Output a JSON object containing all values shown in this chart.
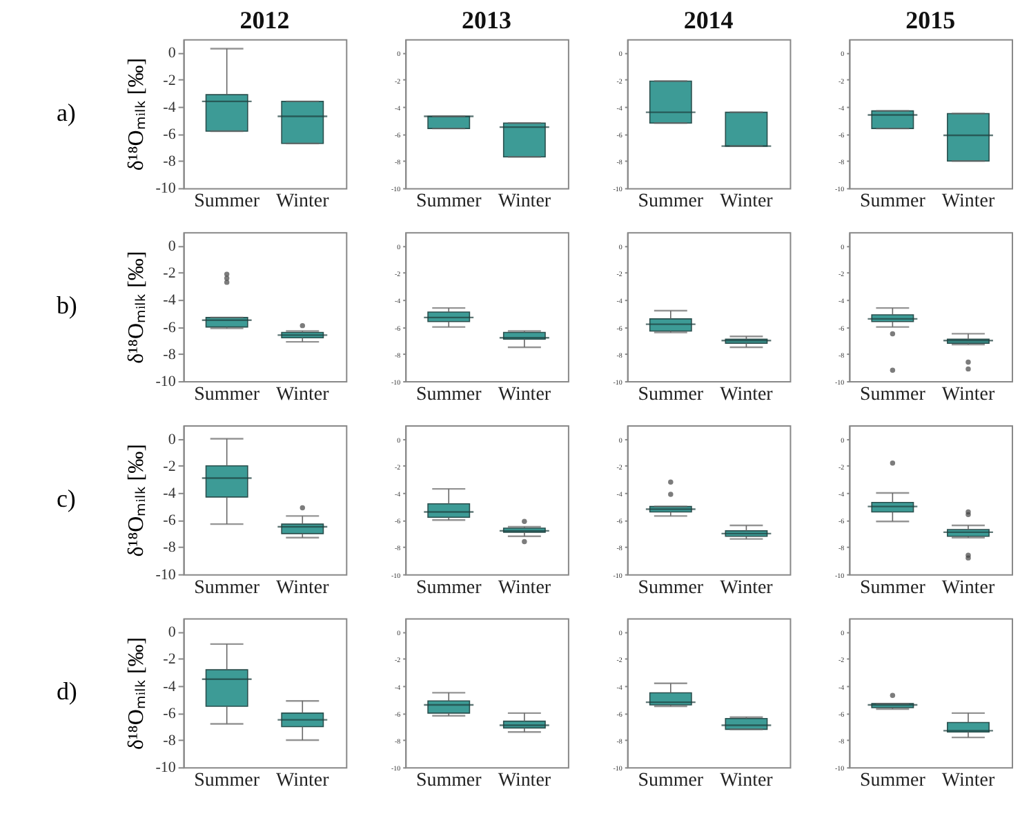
{
  "chart_data": [
    {
      "type": "box",
      "title": "2012",
      "ylabel": "δ¹⁸Oₘᵢₗₖ [‰]",
      "annotations": [
        "a)"
      ],
      "categories": [
        "Summer",
        "Winter"
      ],
      "ylim": [
        -10,
        1
      ],
      "yticks": [
        0,
        -2,
        -4,
        -6,
        -8,
        -10
      ],
      "series": [
        {
          "color": "#3d9b96",
          "boxes": [
            {
              "low": -5.8,
              "q1": -5.8,
              "median": -3.6,
              "q3": -3.1,
              "high": 0.3
            },
            {
              "low": -6.7,
              "q1": -6.7,
              "median": -4.7,
              "q3": -3.6,
              "high": -3.6
            }
          ]
        }
      ]
    },
    {
      "type": "box",
      "title": "2013",
      "categories": [
        "Summer",
        "Winter"
      ],
      "ylim": [
        -10,
        1
      ],
      "yticks": [
        0,
        -2,
        -4,
        -6,
        -8,
        -10
      ],
      "series": [
        {
          "color": "#3d9b96",
          "boxes": [
            {
              "low": -5.6,
              "q1": -5.6,
              "median": -4.7,
              "q3": -4.7,
              "high": -4.7
            },
            {
              "low": -7.7,
              "q1": -7.7,
              "median": -5.5,
              "q3": -5.2,
              "high": -5.2
            }
          ]
        }
      ]
    },
    {
      "type": "box",
      "title": "2014",
      "categories": [
        "Summer",
        "Winter"
      ],
      "ylim": [
        -10,
        1
      ],
      "yticks": [
        0,
        -2,
        -4,
        -6,
        -8,
        -10
      ],
      "series": [
        {
          "color": "#3d9b96",
          "boxes": [
            {
              "low": -5.2,
              "q1": -5.2,
              "median": -4.4,
              "q3": -2.1,
              "high": -2.1
            },
            {
              "low": -6.9,
              "q1": -6.9,
              "median": -6.9,
              "q3": -4.4,
              "high": -4.4
            }
          ]
        }
      ]
    },
    {
      "type": "box",
      "title": "2015",
      "categories": [
        "Summer",
        "Winter"
      ],
      "ylim": [
        -10,
        1
      ],
      "yticks": [
        0,
        -2,
        -4,
        -6,
        -8,
        -10
      ],
      "series": [
        {
          "color": "#3d9b96",
          "boxes": [
            {
              "low": -5.6,
              "q1": -5.6,
              "median": -4.6,
              "q3": -4.3,
              "high": -4.3
            },
            {
              "low": -8.0,
              "q1": -8.0,
              "median": -6.1,
              "q3": -4.5,
              "high": -4.5
            }
          ]
        }
      ]
    },
    {
      "type": "box",
      "ylabel": "δ¹⁸Oₘᵢₗₖ [‰]",
      "annotations": [
        "b)"
      ],
      "categories": [
        "Summer",
        "Winter"
      ],
      "ylim": [
        -10,
        1
      ],
      "yticks": [
        0,
        -2,
        -4,
        -6,
        -8,
        -10
      ],
      "series": [
        {
          "color": "#3d9b96",
          "boxes": [
            {
              "low": -6.1,
              "q1": -6.0,
              "median": -5.5,
              "q3": -5.3,
              "high": -5.3,
              "outliers": [
                -2.1,
                -2.4,
                -2.7
              ]
            },
            {
              "low": -7.1,
              "q1": -6.8,
              "median": -6.6,
              "q3": -6.4,
              "high": -6.3,
              "outliers": [
                -5.9
              ]
            }
          ]
        }
      ]
    },
    {
      "type": "box",
      "categories": [
        "Summer",
        "Winter"
      ],
      "ylim": [
        -10,
        1
      ],
      "yticks": [
        0,
        -2,
        -4,
        -6,
        -8,
        -10
      ],
      "series": [
        {
          "color": "#3d9b96",
          "boxes": [
            {
              "low": -6.0,
              "q1": -5.6,
              "median": -5.3,
              "q3": -4.9,
              "high": -4.6
            },
            {
              "low": -7.5,
              "q1": -6.9,
              "median": -6.8,
              "q3": -6.4,
              "high": -6.3
            }
          ]
        }
      ]
    },
    {
      "type": "box",
      "categories": [
        "Summer",
        "Winter"
      ],
      "ylim": [
        -10,
        1
      ],
      "yticks": [
        0,
        -2,
        -4,
        -6,
        -8,
        -10
      ],
      "series": [
        {
          "color": "#3d9b96",
          "boxes": [
            {
              "low": -6.4,
              "q1": -6.3,
              "median": -5.8,
              "q3": -5.4,
              "high": -4.8
            },
            {
              "low": -7.5,
              "q1": -7.2,
              "median": -7.0,
              "q3": -6.9,
              "high": -6.7
            }
          ]
        }
      ]
    },
    {
      "type": "box",
      "categories": [
        "Summer",
        "Winter"
      ],
      "ylim": [
        -10,
        1
      ],
      "yticks": [
        0,
        -2,
        -4,
        -6,
        -8,
        -10
      ],
      "series": [
        {
          "color": "#3d9b96",
          "boxes": [
            {
              "low": -6.0,
              "q1": -5.6,
              "median": -5.4,
              "q3": -5.1,
              "high": -4.6,
              "outliers": [
                -6.5,
                -9.2
              ]
            },
            {
              "low": -7.3,
              "q1": -7.2,
              "median": -7.0,
              "q3": -6.9,
              "high": -6.5,
              "outliers": [
                -8.6,
                -9.1
              ]
            }
          ]
        }
      ]
    },
    {
      "type": "box",
      "ylabel": "δ¹⁸Oₘᵢₗₖ [‰]",
      "annotations": [
        "c)"
      ],
      "categories": [
        "Summer",
        "Winter"
      ],
      "ylim": [
        -10,
        1
      ],
      "yticks": [
        0,
        -2,
        -4,
        -6,
        -8,
        -10
      ],
      "series": [
        {
          "color": "#3d9b96",
          "boxes": [
            {
              "low": -6.3,
              "q1": -4.3,
              "median": -2.9,
              "q3": -2.0,
              "high": 0
            },
            {
              "low": -7.3,
              "q1": -7.0,
              "median": -6.5,
              "q3": -6.3,
              "high": -5.7,
              "outliers": [
                -5.1
              ]
            }
          ]
        }
      ]
    },
    {
      "type": "box",
      "categories": [
        "Summer",
        "Winter"
      ],
      "ylim": [
        -10,
        1
      ],
      "yticks": [
        0,
        -2,
        -4,
        -6,
        -8,
        -10
      ],
      "series": [
        {
          "color": "#3d9b96",
          "boxes": [
            {
              "low": -6.0,
              "q1": -5.8,
              "median": -5.4,
              "q3": -4.8,
              "high": -3.7
            },
            {
              "low": -7.2,
              "q1": -6.9,
              "median": -6.8,
              "q3": -6.6,
              "high": -6.5,
              "outliers": [
                -6.1,
                -7.6
              ]
            }
          ]
        }
      ]
    },
    {
      "type": "box",
      "categories": [
        "Summer",
        "Winter"
      ],
      "ylim": [
        -10,
        1
      ],
      "yticks": [
        0,
        -2,
        -4,
        -6,
        -8,
        -10
      ],
      "series": [
        {
          "color": "#3d9b96",
          "boxes": [
            {
              "low": -5.7,
              "q1": -5.4,
              "median": -5.2,
              "q3": -5.0,
              "high": -5.0,
              "outliers": [
                -3.2,
                -4.1
              ]
            },
            {
              "low": -7.4,
              "q1": -7.2,
              "median": -7.0,
              "q3": -6.8,
              "high": -6.4
            }
          ]
        }
      ]
    },
    {
      "type": "box",
      "categories": [
        "Summer",
        "Winter"
      ],
      "ylim": [
        -10,
        1
      ],
      "yticks": [
        0,
        -2,
        -4,
        -6,
        -8,
        -10
      ],
      "series": [
        {
          "color": "#3d9b96",
          "boxes": [
            {
              "low": -6.1,
              "q1": -5.4,
              "median": -5.0,
              "q3": -4.7,
              "high": -4.0,
              "outliers": [
                -1.8
              ]
            },
            {
              "low": -7.3,
              "q1": -7.2,
              "median": -6.9,
              "q3": -6.7,
              "high": -6.4,
              "outliers": [
                -5.4,
                -5.6,
                -8.6,
                -8.8
              ]
            }
          ]
        }
      ]
    },
    {
      "type": "box",
      "ylabel": "δ¹⁸Oₘᵢₗₖ [‰]",
      "annotations": [
        "d)"
      ],
      "categories": [
        "Summer",
        "Winter"
      ],
      "ylim": [
        -10,
        1
      ],
      "yticks": [
        0,
        -2,
        -4,
        -6,
        -8,
        -10
      ],
      "series": [
        {
          "color": "#3d9b96",
          "boxes": [
            {
              "low": -6.8,
              "q1": -5.5,
              "median": -3.5,
              "q3": -2.8,
              "high": -0.9
            },
            {
              "low": -8.0,
              "q1": -7.0,
              "median": -6.5,
              "q3": -6.0,
              "high": -5.1
            }
          ]
        }
      ]
    },
    {
      "type": "box",
      "categories": [
        "Summer",
        "Winter"
      ],
      "ylim": [
        -10,
        1
      ],
      "yticks": [
        0,
        -2,
        -4,
        -6,
        -8,
        -10
      ],
      "series": [
        {
          "color": "#3d9b96",
          "boxes": [
            {
              "low": -6.2,
              "q1": -6.0,
              "median": -5.4,
              "q3": -5.1,
              "high": -4.5
            },
            {
              "low": -7.4,
              "q1": -7.1,
              "median": -6.9,
              "q3": -6.6,
              "high": -6.0
            }
          ]
        }
      ]
    },
    {
      "type": "box",
      "categories": [
        "Summer",
        "Winter"
      ],
      "ylim": [
        -10,
        1
      ],
      "yticks": [
        0,
        -2,
        -4,
        -6,
        -8,
        -10
      ],
      "series": [
        {
          "color": "#3d9b96",
          "boxes": [
            {
              "low": -5.5,
              "q1": -5.4,
              "median": -5.2,
              "q3": -4.5,
              "high": -3.8
            },
            {
              "low": -7.2,
              "q1": -7.2,
              "median": -6.9,
              "q3": -6.4,
              "high": -6.3
            }
          ]
        }
      ]
    },
    {
      "type": "box",
      "categories": [
        "Summer",
        "Winter"
      ],
      "ylim": [
        -10,
        1
      ],
      "yticks": [
        0,
        -2,
        -4,
        -6,
        -8,
        -10
      ],
      "series": [
        {
          "color": "#3d9b96",
          "boxes": [
            {
              "low": -5.7,
              "q1": -5.6,
              "median": -5.4,
              "q3": -5.3,
              "high": -5.3,
              "outliers": [
                -4.7
              ]
            },
            {
              "low": -7.8,
              "q1": -7.4,
              "median": -7.3,
              "q3": -6.7,
              "high": -6.0
            }
          ]
        }
      ]
    }
  ]
}
